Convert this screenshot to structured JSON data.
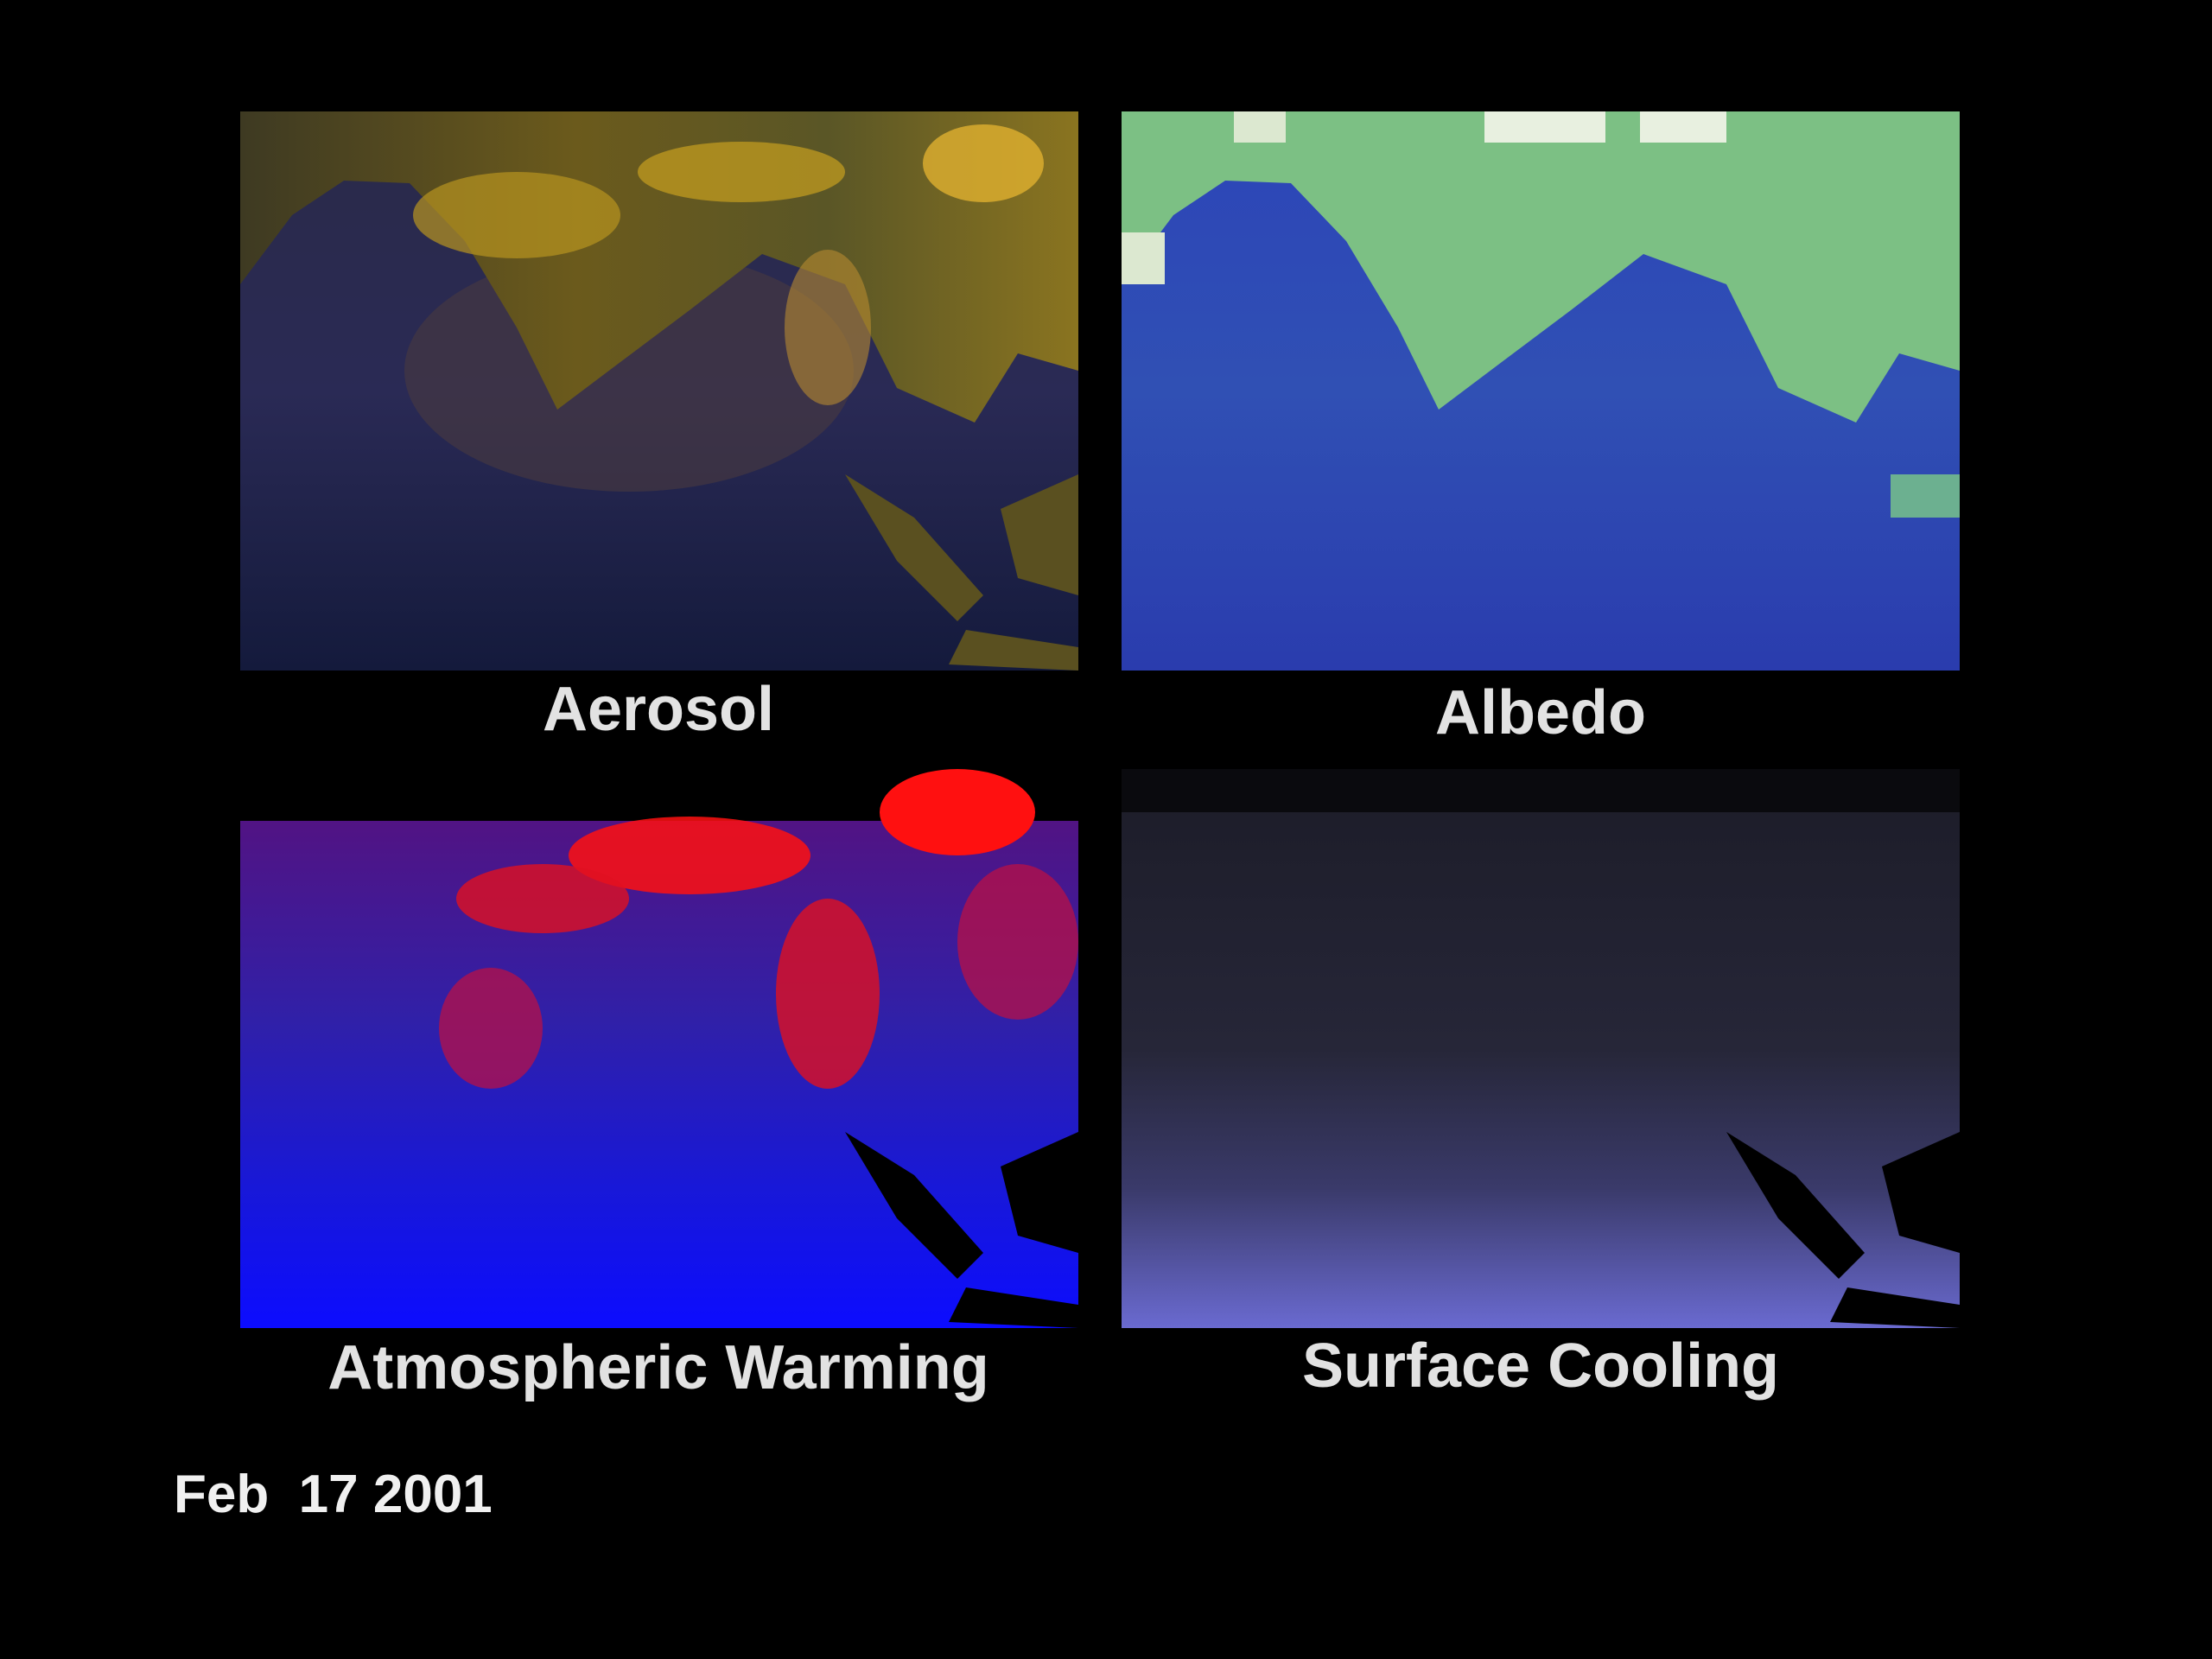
{
  "panels": [
    {
      "label": "Aerosol"
    },
    {
      "label": "Albedo"
    },
    {
      "label": "Atmospheric Warming"
    },
    {
      "label": "Surface Cooling"
    }
  ],
  "date": "Feb  17 2001"
}
